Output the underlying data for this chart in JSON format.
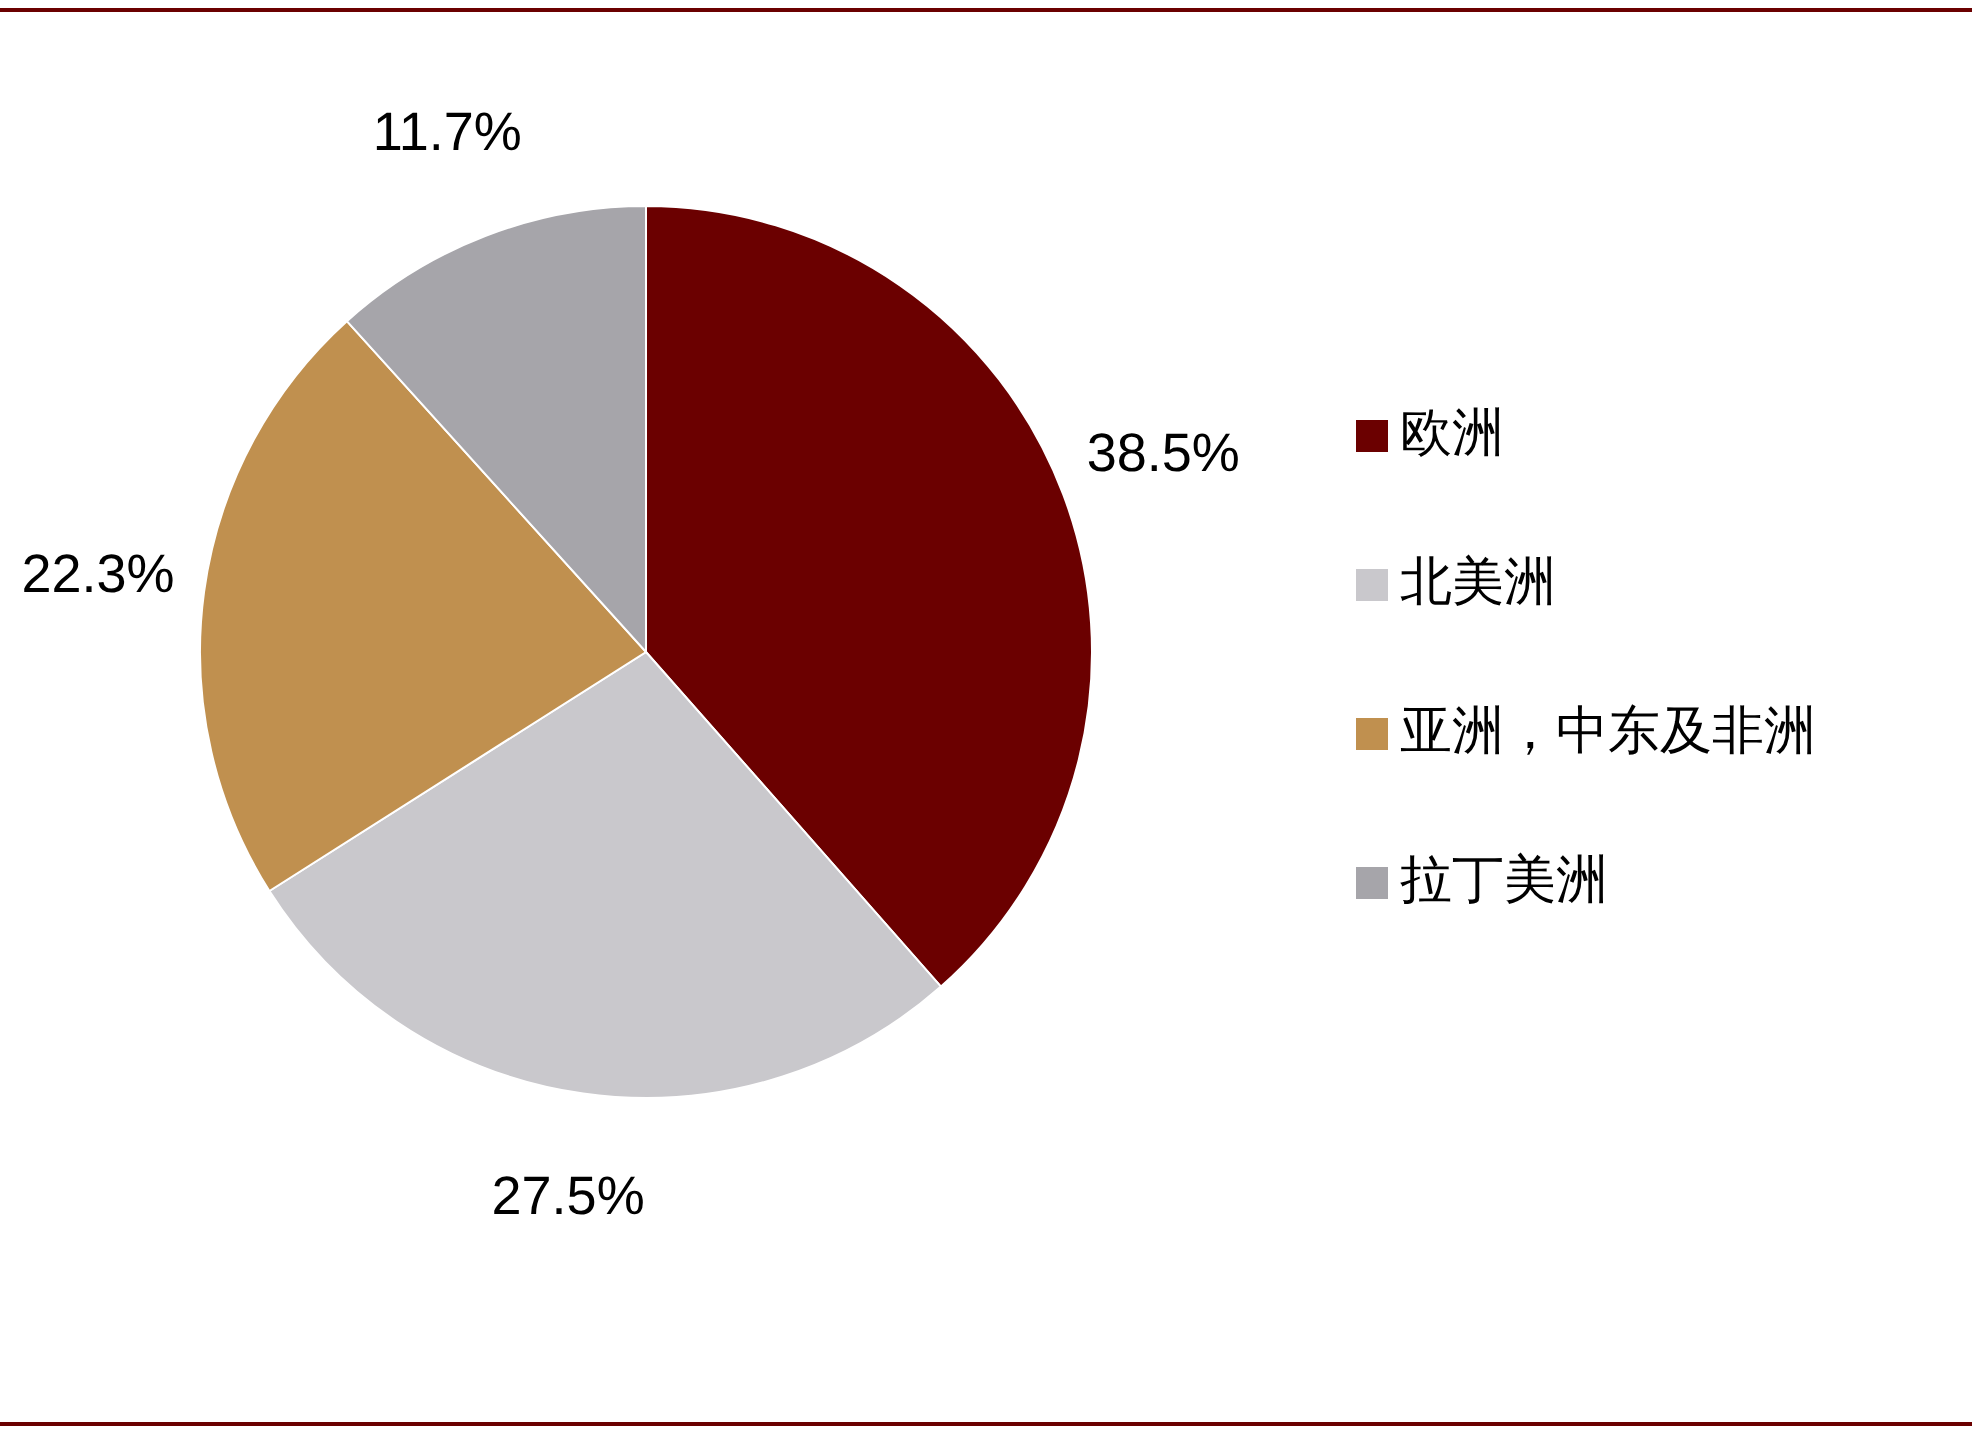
{
  "chart_data": {
    "type": "pie",
    "categories": [
      "欧洲",
      "北美洲",
      "亚洲，中东及非洲",
      "拉丁美洲"
    ],
    "values": [
      38.5,
      27.5,
      22.3,
      11.7
    ],
    "colors": [
      "#6b0000",
      "#c9c8cc",
      "#c0904f",
      "#a6a5aa"
    ],
    "value_labels": [
      "38.5%",
      "27.5%",
      "22.3%",
      "11.7%"
    ],
    "legend": "right"
  }
}
